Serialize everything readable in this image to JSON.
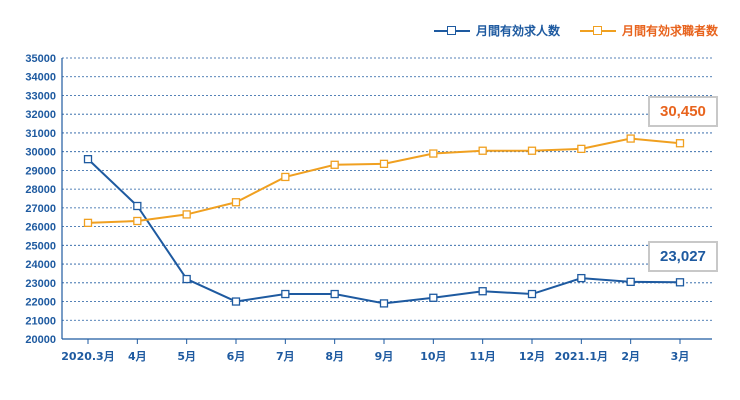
{
  "chart_data": {
    "type": "line",
    "categories": [
      "2020.3月",
      "4月",
      "5月",
      "6月",
      "7月",
      "8月",
      "9月",
      "10月",
      "11月",
      "12月",
      "2021.1月",
      "2月",
      "3月"
    ],
    "series": [
      {
        "name": "月間有効求人数",
        "color": "#1e5aa0",
        "values": [
          29600,
          27100,
          23200,
          22000,
          22400,
          22400,
          21900,
          22200,
          22550,
          22400,
          23250,
          23050,
          23027
        ]
      },
      {
        "name": "月間有効求職者数",
        "color": "#f0a020",
        "values": [
          26200,
          26300,
          26650,
          27300,
          28650,
          29300,
          29350,
          29900,
          30050,
          30050,
          30150,
          30700,
          30450
        ]
      }
    ],
    "ylim": [
      20000,
      35000
    ],
    "yticks": [
      20000,
      21000,
      22000,
      23000,
      24000,
      25000,
      26000,
      27000,
      28000,
      29000,
      30000,
      31000,
      32000,
      33000,
      34000,
      35000
    ],
    "grid": true,
    "legend_position": "top-right",
    "annotations": [
      {
        "text": "30,450",
        "series": "月間有効求職者数",
        "color": "#e8641e"
      },
      {
        "text": "23,027",
        "series": "月間有効求人数",
        "color": "#1e5aa0"
      }
    ]
  }
}
